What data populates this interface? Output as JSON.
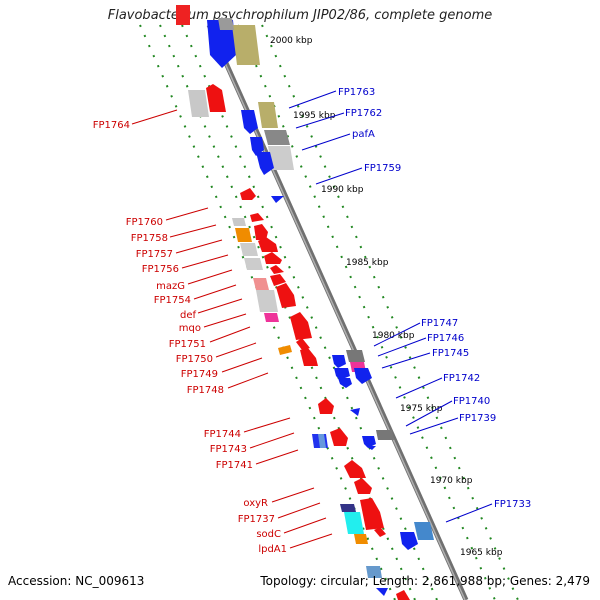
{
  "title": "Flavobacterium psychrophilum JIP02/86, complete genome",
  "footer": {
    "accession": "Accession: NC_009613",
    "summary": "Topology: circular; Length: 2,861,988 bp; Genes: 2,479"
  },
  "ticks": [
    "2000 kbp",
    "1995 kbp",
    "1990 kbp",
    "1985 kbp",
    "1980 kbp",
    "1975 kbp",
    "1970 kbp",
    "1965 kbp"
  ],
  "left_labels": [
    "FP1764",
    "FP1760",
    "FP1758",
    "FP1757",
    "FP1756",
    "mazG",
    "FP1754",
    "def",
    "mqo",
    "FP1751",
    "FP1750",
    "FP1749",
    "FP1748",
    "FP1744",
    "FP1743",
    "FP1741",
    "oxyR",
    "FP1737",
    "sodC",
    "lpdA1"
  ],
  "right_labels": [
    "FP1763",
    "FP1762",
    "pafA",
    "FP1759",
    "FP1747",
    "FP1746",
    "FP1745",
    "FP1742",
    "FP1740",
    "FP1739",
    "FP1733"
  ],
  "colors": {
    "forward_label": "#0000cc",
    "reverse_label": "#cc0000",
    "forward_gene": "#0000ee",
    "reverse_gene": "#ee0000",
    "axis": "#888888",
    "guide": "#228822"
  }
}
